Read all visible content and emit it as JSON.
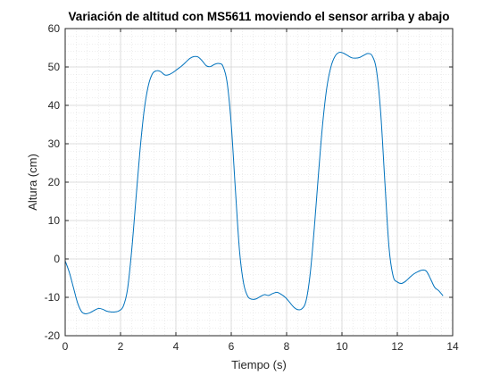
{
  "chart_data": {
    "type": "line",
    "title": "Variación de altitud con MS5611 moviendo el sensor arriba y abajo",
    "xlabel": "Tiempo (s)",
    "ylabel": "Altura (cm)",
    "xlim": [
      0,
      14
    ],
    "ylim": [
      -20,
      60
    ],
    "xticks": [
      0,
      2,
      4,
      6,
      8,
      10,
      12,
      14
    ],
    "yticks": [
      -20,
      -10,
      0,
      10,
      20,
      30,
      40,
      50,
      60
    ],
    "grid": true,
    "minor_grid": true,
    "line_color": "#0072BD",
    "series": [
      {
        "x": [
          0,
          0.15,
          0.3,
          0.45,
          0.6,
          0.75,
          0.9,
          1.05,
          1.2,
          1.35,
          1.5,
          1.65,
          1.8,
          1.95,
          2.1,
          2.25,
          2.4,
          2.55,
          2.7,
          2.85,
          3.0,
          3.15,
          3.3,
          3.45,
          3.6,
          3.75,
          3.9,
          4.05,
          4.2,
          4.35,
          4.5,
          4.65,
          4.8,
          4.95,
          5.1,
          5.25,
          5.4,
          5.55,
          5.7,
          5.85,
          6.0,
          6.15,
          6.3,
          6.45,
          6.6,
          6.75,
          6.9,
          7.05,
          7.2,
          7.35,
          7.5,
          7.65,
          7.8,
          7.95,
          8.1,
          8.25,
          8.4,
          8.55,
          8.7,
          8.85,
          9.0,
          9.15,
          9.3,
          9.45,
          9.6,
          9.75,
          9.9,
          10.05,
          10.2,
          10.35,
          10.5,
          10.65,
          10.8,
          10.95,
          11.1,
          11.25,
          11.4,
          11.55,
          11.7,
          11.85,
          12.0,
          12.15,
          12.3,
          12.45,
          12.6,
          12.75,
          12.9,
          13.05,
          13.2,
          13.35,
          13.5,
          13.65
        ],
        "y": [
          -0.5,
          -3.5,
          -7.5,
          -11.5,
          -13.8,
          -14.3,
          -14.0,
          -13.4,
          -12.9,
          -13.1,
          -13.6,
          -13.8,
          -13.8,
          -13.5,
          -12.3,
          -8.0,
          2.0,
          15.0,
          28.0,
          38.5,
          45.0,
          48.2,
          49.0,
          48.8,
          47.9,
          48.0,
          48.6,
          49.4,
          50.2,
          51.2,
          52.2,
          52.7,
          52.6,
          51.6,
          50.3,
          50.1,
          50.7,
          50.9,
          50.2,
          46.0,
          35.0,
          18.0,
          2.0,
          -6.5,
          -9.8,
          -10.5,
          -10.4,
          -9.8,
          -9.3,
          -9.5,
          -9.0,
          -8.7,
          -9.2,
          -10.0,
          -11.2,
          -12.5,
          -13.2,
          -13.0,
          -11.0,
          -4.0,
          8.0,
          22.0,
          35.0,
          44.5,
          50.0,
          52.8,
          53.8,
          53.6,
          53.0,
          52.4,
          52.3,
          52.5,
          53.1,
          53.5,
          52.8,
          49.0,
          38.0,
          20.0,
          3.0,
          -4.5,
          -6.0,
          -6.4,
          -5.8,
          -4.8,
          -3.9,
          -3.3,
          -2.9,
          -3.2,
          -5.2,
          -7.4,
          -8.3,
          -9.6
        ]
      }
    ]
  }
}
